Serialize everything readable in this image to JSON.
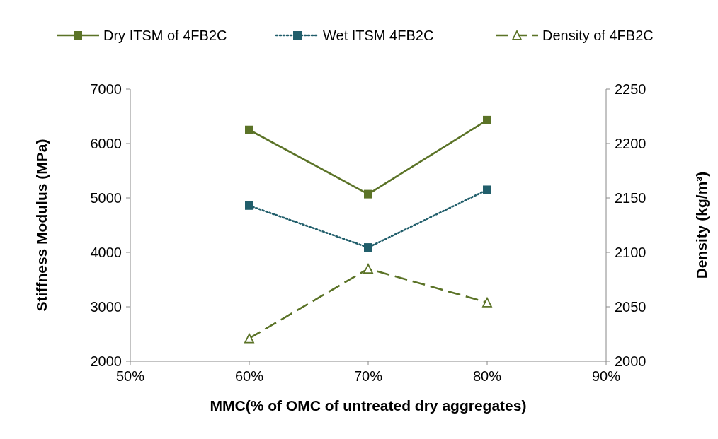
{
  "chart_data": {
    "type": "line",
    "xlabel": "MMC(% of OMC of untreated dry aggregates)",
    "ylabel": "Stiffness Modulus (MPa)",
    "y2label": "Density (kg/m³)",
    "x": [
      60,
      70,
      80
    ],
    "xlim": [
      50,
      90
    ],
    "xticks": [
      {
        "value": 50,
        "label": "50%"
      },
      {
        "value": 60,
        "label": "60%"
      },
      {
        "value": 70,
        "label": "70%"
      },
      {
        "value": 80,
        "label": "80%"
      },
      {
        "value": 90,
        "label": "90%"
      }
    ],
    "ylim": [
      2000,
      7000
    ],
    "yticks": [
      2000,
      3000,
      4000,
      5000,
      6000,
      7000
    ],
    "y2lim": [
      2000,
      2250
    ],
    "y2ticks": [
      2000,
      2050,
      2100,
      2150,
      2200,
      2250
    ],
    "grid": false,
    "legend": "top",
    "series": [
      {
        "name": "Dry ITSM of 4FB2C",
        "color": "#5b7327",
        "values": [
          6250,
          5070,
          6430
        ],
        "marker": "square",
        "line_style": "solid"
      },
      {
        "name": "Wet ITSM 4FB2C",
        "color": "#215e6b",
        "values": [
          4860,
          4090,
          5150
        ],
        "marker": "square",
        "line_style": "dotted"
      },
      {
        "name": "Density of 4FB2C",
        "color": "#5b7327",
        "values": [
          2021,
          2085,
          2054
        ],
        "marker": "triangle",
        "line_style": "dashed",
        "axis": "y2"
      }
    ]
  }
}
